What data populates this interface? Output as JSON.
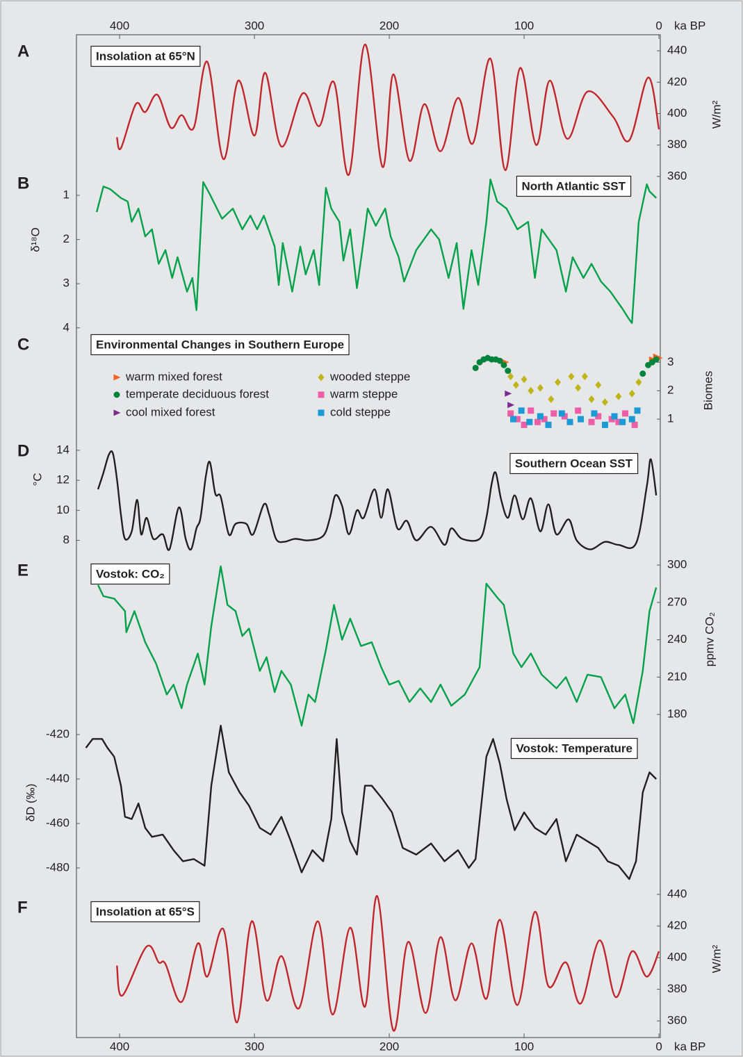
{
  "chart_data": [
    {
      "type": "line",
      "panel": "A",
      "title": "Insolation at 65°N",
      "ylabel": "W/m²",
      "color": "#c0272d",
      "xlim": [
        432,
        -1
      ],
      "xticks": [
        400,
        300,
        200,
        100,
        0
      ],
      "xlabel": "ka BP",
      "ylim": [
        357.3,
        450.2
      ],
      "yticks": [
        360,
        380,
        400,
        420,
        440
      ],
      "x": [
        402,
        399,
        388,
        381,
        372,
        362,
        354,
        345,
        335,
        323,
        312,
        300,
        292,
        280,
        264,
        252,
        241,
        230,
        218,
        205,
        197,
        185,
        174,
        162,
        149,
        138,
        125,
        114,
        103,
        91,
        81,
        68,
        53,
        34,
        22,
        8,
        0
      ],
      "values": [
        385,
        378,
        406,
        401,
        412,
        391,
        399,
        391,
        433,
        371,
        421,
        386,
        426,
        379,
        413,
        392,
        420,
        361,
        444,
        366,
        425,
        370,
        406,
        376,
        410,
        381,
        435,
        364,
        429,
        380,
        421,
        384,
        414,
        398,
        383,
        423,
        390
      ]
    },
    {
      "type": "line",
      "panel": "B",
      "title": "North Atlantic SST",
      "ylabel": "δ¹⁸O",
      "color": "#00a14b",
      "xlim": [
        432,
        -1
      ],
      "ylim": [
        4.05,
        0.59
      ],
      "yticks": [
        1,
        2,
        3,
        4
      ],
      "x": [
        417,
        412,
        407,
        399,
        394,
        391,
        386,
        381,
        376,
        371,
        366,
        361,
        357,
        350,
        346,
        343,
        338,
        333,
        324,
        316,
        309,
        303,
        298,
        293,
        285,
        282,
        279,
        272,
        266,
        262,
        256,
        252,
        247,
        243,
        237,
        234,
        229,
        224,
        220,
        216,
        210,
        203,
        199,
        193,
        189,
        180,
        169,
        163,
        156,
        150,
        145,
        139,
        134,
        128,
        125,
        120,
        113,
        105,
        97,
        92,
        87,
        76,
        69,
        64,
        56,
        50,
        43,
        36,
        27,
        22,
        20,
        15,
        9,
        7,
        2
      ],
      "values": [
        1.38,
        0.8,
        0.86,
        1.06,
        1.14,
        1.6,
        1.3,
        1.93,
        1.77,
        2.55,
        2.24,
        2.87,
        2.4,
        3.18,
        2.87,
        3.6,
        0.7,
        0.98,
        1.53,
        1.3,
        1.77,
        1.46,
        1.77,
        1.46,
        2.16,
        3.03,
        2.08,
        3.18,
        2.16,
        2.79,
        2.24,
        3.03,
        0.83,
        1.3,
        1.6,
        2.48,
        1.77,
        3.1,
        2.24,
        1.3,
        1.69,
        1.3,
        1.93,
        2.4,
        2.95,
        2.24,
        1.77,
        2.0,
        2.87,
        2.08,
        3.57,
        2.24,
        3.03,
        1.6,
        0.64,
        1.14,
        1.3,
        1.77,
        1.6,
        2.87,
        1.77,
        2.24,
        3.18,
        2.4,
        2.87,
        2.55,
        2.95,
        3.18,
        3.57,
        3.81,
        3.89,
        1.6,
        0.75,
        0.91,
        1.06
      ]
    },
    {
      "type": "scatter",
      "panel": "C",
      "title": "Environmental Changes in Southern Europe",
      "ylabel": "Biomes",
      "xlim": [
        432,
        -1
      ],
      "ylim": [
        0.1,
        3.3
      ],
      "yticks": [
        1,
        2,
        3
      ],
      "series": [
        {
          "name": "warm mixed forest",
          "color": "#f26522",
          "marker": "triangle",
          "x": [
            114,
            5,
            2,
            0
          ],
          "values": [
            3.0,
            3.1,
            3.2,
            3.15
          ]
        },
        {
          "name": "temperate deciduous forest",
          "color": "#00843d",
          "marker": "circle",
          "x": [
            136,
            133,
            130,
            127,
            124,
            121,
            118,
            115,
            112,
            12,
            8,
            5,
            2
          ],
          "values": [
            2.8,
            3.0,
            3.1,
            3.15,
            3.1,
            3.1,
            3.05,
            2.9,
            2.7,
            2.6,
            2.9,
            3.0,
            3.1
          ]
        },
        {
          "name": "cool mixed forest",
          "color": "#7b2a8f",
          "marker": "triangle",
          "x": [
            112,
            110
          ],
          "values": [
            1.9,
            1.5
          ]
        },
        {
          "name": "wooded steppe",
          "color": "#bfb51a",
          "marker": "diamond",
          "x": [
            110,
            106,
            100,
            95,
            88,
            80,
            75,
            65,
            60,
            55,
            50,
            45,
            40,
            30,
            20,
            15
          ],
          "values": [
            2.5,
            2.2,
            2.4,
            2.0,
            2.1,
            1.7,
            2.3,
            2.5,
            2.1,
            2.5,
            1.7,
            2.2,
            1.6,
            1.8,
            1.9,
            2.3
          ]
        },
        {
          "name": "warm steppe",
          "color": "#ec5fa6",
          "marker": "square",
          "x": [
            110,
            105,
            100,
            95,
            90,
            85,
            78,
            70,
            60,
            50,
            45,
            35,
            30,
            25,
            18
          ],
          "values": [
            1.2,
            1.0,
            0.8,
            1.3,
            0.9,
            1.0,
            1.2,
            1.1,
            1.3,
            0.9,
            1.1,
            1.0,
            0.9,
            1.2,
            0.8
          ]
        },
        {
          "name": "cold steppe",
          "color": "#1b9ad6",
          "marker": "square",
          "x": [
            108,
            102,
            96,
            88,
            82,
            72,
            66,
            58,
            48,
            40,
            33,
            27,
            20,
            16
          ],
          "values": [
            1.0,
            1.3,
            0.9,
            1.1,
            0.8,
            1.2,
            0.9,
            1.0,
            1.2,
            0.8,
            1.1,
            0.9,
            1.0,
            1.3
          ]
        }
      ]
    },
    {
      "type": "line",
      "panel": "D",
      "title": "Southern Ocean SST",
      "ylabel": "°C",
      "color": "#231f20",
      "xlim": [
        432,
        -1
      ],
      "ylim": [
        6.73,
        14.6
      ],
      "yticks": [
        8,
        10,
        12,
        14
      ],
      "x": [
        416,
        412,
        408,
        405,
        402,
        399,
        396,
        391,
        387,
        384,
        380,
        375,
        368,
        363,
        356,
        351,
        347,
        343,
        340,
        336,
        333,
        329,
        325,
        319,
        314,
        306,
        301,
        293,
        289,
        284,
        278,
        270,
        260,
        249,
        244,
        240,
        235,
        230,
        224,
        219,
        211,
        206,
        201,
        194,
        187,
        180,
        169,
        159,
        154,
        146,
        133,
        128,
        124,
        121,
        117,
        112,
        107,
        101,
        95,
        88,
        82,
        76,
        67,
        61,
        51,
        40,
        30,
        17,
        9,
        6,
        2
      ],
      "values": [
        11.4,
        12.5,
        13.7,
        13.8,
        12.1,
        9.7,
        8.1,
        8.6,
        10.7,
        8.4,
        9.5,
        8.1,
        8.4,
        7.4,
        10.2,
        8.1,
        7.4,
        8.8,
        9.5,
        12.3,
        13.2,
        11.1,
        10.9,
        8.4,
        9.1,
        9.1,
        8.4,
        10.4,
        9.7,
        8.1,
        7.9,
        8.1,
        8.0,
        8.3,
        9.5,
        11.0,
        10.3,
        8.4,
        10.0,
        9.5,
        11.4,
        9.5,
        11.4,
        8.8,
        9.3,
        8.0,
        8.9,
        7.7,
        8.8,
        8.1,
        8.1,
        9.5,
        11.8,
        12.5,
        10.7,
        9.5,
        11.0,
        9.4,
        10.8,
        8.6,
        10.4,
        8.4,
        9.4,
        8.0,
        7.4,
        7.9,
        7.7,
        7.8,
        11.6,
        13.4,
        11.0
      ]
    },
    {
      "type": "line",
      "panel": "E",
      "title": "Vostok: CO₂",
      "ylabel": "ppmv CO₂",
      "color": "#00a14b",
      "xlim": [
        432,
        -1
      ],
      "ylim": [
        165,
        307.3
      ],
      "yticks": [
        180,
        210,
        240,
        270,
        300
      ],
      "x": [
        416,
        412,
        404,
        396,
        395,
        389,
        381,
        373,
        365,
        360,
        354,
        350,
        342,
        337,
        332,
        325,
        320,
        314,
        309,
        304,
        296,
        291,
        285,
        280,
        273,
        265,
        260,
        255,
        247,
        241,
        235,
        229,
        221,
        213,
        206,
        200,
        193,
        185,
        177,
        169,
        162,
        154,
        144,
        133,
        128,
        120,
        115,
        108,
        102,
        95,
        87,
        76,
        69,
        61,
        53,
        43,
        33,
        25,
        19,
        12,
        7,
        2
      ],
      "values": [
        284,
        275,
        273,
        263,
        246,
        263,
        238,
        221,
        196,
        204,
        185,
        204,
        229,
        204,
        251,
        299,
        268,
        263,
        243,
        249,
        215,
        226,
        198,
        215,
        204,
        171,
        196,
        190,
        232,
        268,
        240,
        257,
        235,
        238,
        218,
        204,
        207,
        190,
        201,
        190,
        204,
        187,
        196,
        218,
        285,
        274,
        268,
        229,
        218,
        229,
        212,
        201,
        210,
        190,
        212,
        210,
        185,
        196,
        173,
        215,
        263,
        282
      ]
    },
    {
      "type": "line",
      "title": "Vostok: Temperature",
      "ylabel": "δD (‰)",
      "color": "#231f20",
      "xlim": [
        432,
        -1
      ],
      "ylim": [
        -489.7,
        -414.7
      ],
      "yticks": [
        -480,
        -460,
        -440,
        -420
      ],
      "x": [
        425,
        420,
        413,
        409,
        404,
        399,
        396,
        391,
        386,
        381,
        376,
        368,
        360,
        353,
        345,
        337,
        332,
        325,
        319,
        311,
        304,
        296,
        288,
        280,
        273,
        265,
        257,
        249,
        243,
        239,
        235,
        229,
        224,
        218,
        213,
        205,
        198,
        190,
        180,
        169,
        159,
        149,
        141,
        136,
        128,
        123,
        118,
        113,
        107,
        100,
        92,
        84,
        76,
        69,
        61,
        53,
        45,
        38,
        30,
        22,
        17,
        12,
        7,
        2
      ],
      "values": [
        -426,
        -422,
        -422,
        -426,
        -430,
        -443,
        -457,
        -458,
        -451,
        -462,
        -466,
        -465,
        -472,
        -477,
        -476,
        -479,
        -443,
        -416,
        -437,
        -446,
        -452,
        -462,
        -465,
        -457,
        -468,
        -482,
        -472,
        -477,
        -458,
        -422,
        -455,
        -468,
        -474,
        -443,
        -443,
        -449,
        -455,
        -471,
        -474,
        -469,
        -477,
        -472,
        -480,
        -476,
        -430,
        -422,
        -433,
        -449,
        -463,
        -455,
        -462,
        -465,
        -458,
        -477,
        -465,
        -468,
        -471,
        -477,
        -479,
        -485,
        -477,
        -446,
        -437,
        -440
      ]
    },
    {
      "type": "line",
      "panel": "F",
      "title": "Insolation at 65°S",
      "ylabel": "W/m²",
      "color": "#c0272d",
      "xlim": [
        432,
        -1
      ],
      "xticks": [
        400,
        300,
        200,
        100,
        0
      ],
      "xlabel": "ka BP",
      "ylim": [
        350.8,
        445.3
      ],
      "yticks": [
        360,
        380,
        400,
        420,
        440
      ],
      "x": [
        402,
        398,
        380,
        371,
        366,
        354,
        342,
        335,
        323,
        313,
        302,
        291,
        280,
        267,
        253,
        242,
        229,
        218,
        209,
        197,
        186,
        173,
        162,
        151,
        139,
        128,
        118,
        105,
        92,
        82,
        69,
        58,
        44,
        32,
        20,
        9,
        0
      ],
      "values": [
        395,
        376,
        407,
        397,
        396,
        372,
        409,
        388,
        418,
        359,
        423,
        373,
        401,
        368,
        423,
        364,
        419,
        369,
        439,
        354,
        410,
        365,
        413,
        373,
        409,
        374,
        424,
        370,
        429,
        382,
        397,
        371,
        411,
        375,
        404,
        388,
        404
      ]
    }
  ]
}
